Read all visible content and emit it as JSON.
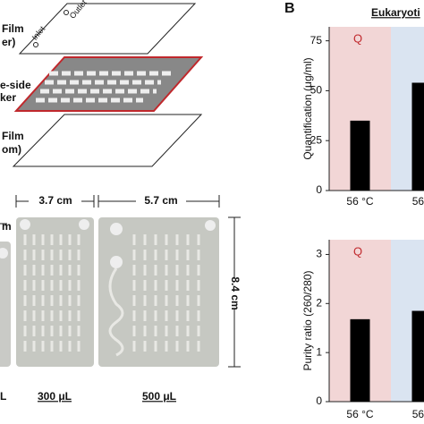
{
  "figure_a": {
    "layer_labels": [
      "Film",
      "er)",
      "e-side",
      "ker",
      "Film",
      "om)"
    ],
    "inlet": "Inlet",
    "outlet": "Outlet",
    "cropped_dimension": "m",
    "widths": [
      "3.7 cm",
      "5.7 cm"
    ],
    "height": "8.4 cm",
    "volumes": [
      "L",
      "300 μL",
      "500 μL"
    ]
  },
  "panel_b": {
    "label": "B",
    "title": "Eukaryoti"
  },
  "chart_data": [
    {
      "type": "bar",
      "ylabel": "Quantification (μg/ml)",
      "categories": [
        "56 °C",
        "56 °"
      ],
      "values": [
        35,
        54
      ],
      "color": "#000000",
      "band_colors": [
        "#f2d6d6",
        "#dae4f1"
      ],
      "annotation": "Q",
      "ylim": [
        0,
        82
      ],
      "yticks": [
        0,
        25,
        50,
        75
      ]
    },
    {
      "type": "bar",
      "ylabel": "Purity ratio (260/280)",
      "categories": [
        "56 °C",
        "56 °"
      ],
      "values": [
        1.68,
        1.85
      ],
      "color": "#000000",
      "band_colors": [
        "#f2d6d6",
        "#dae4f1"
      ],
      "annotation": "Q",
      "ylim": [
        0,
        3.3
      ],
      "yticks": [
        0,
        1,
        2,
        3
      ]
    }
  ]
}
